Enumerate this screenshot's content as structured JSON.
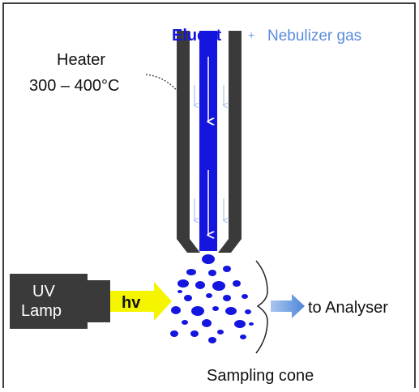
{
  "labels": {
    "eluent": "Eluent",
    "plus": "+",
    "nebulizer_gas": "Nebulizer gas",
    "heater": "Heater",
    "temperature": "300 – 400°C",
    "uv": "UV",
    "lamp": "Lamp",
    "hv": "hv",
    "to_analyser": "to Analyser",
    "sampling_cone": "Sampling cone"
  }
}
